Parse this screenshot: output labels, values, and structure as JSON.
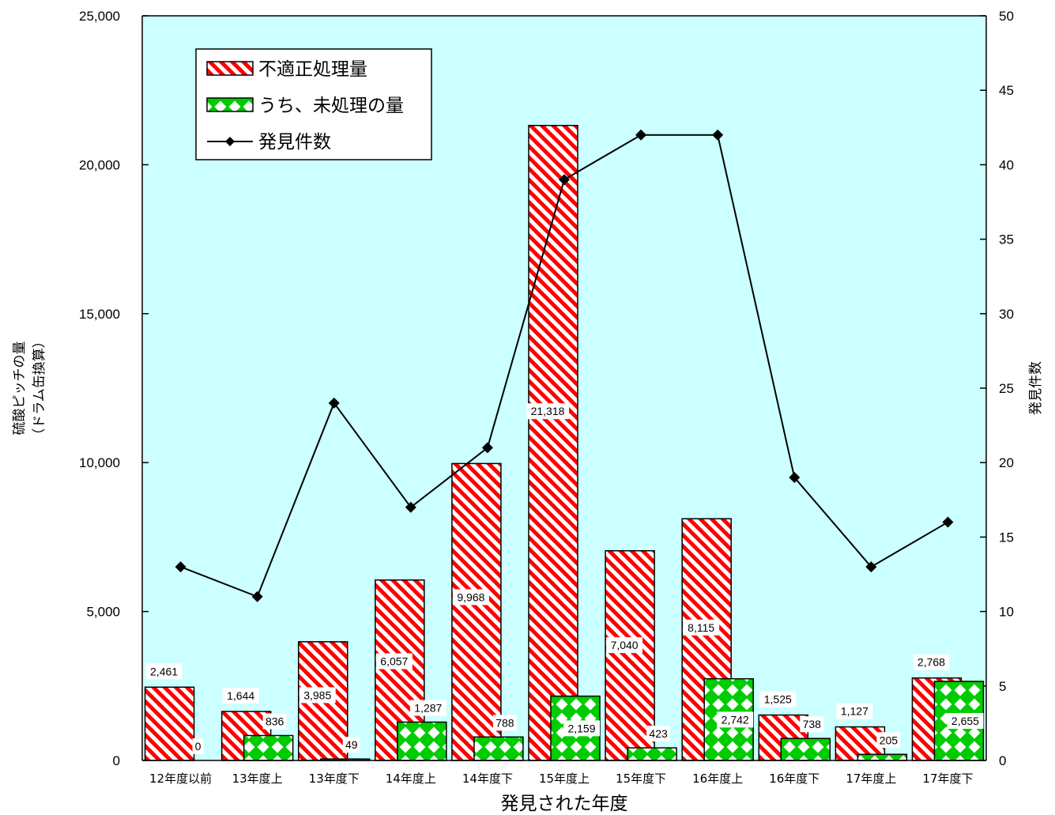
{
  "chart_data": {
    "type": "bar",
    "xlabel": "発見された年度",
    "ylabel": "硫酸ピッチの量",
    "ylabel_sub": "（ドラム缶換算）",
    "y2label": "発見件数",
    "ylim": [
      0,
      25000
    ],
    "y2lim": [
      0,
      50
    ],
    "yticks": [
      "0",
      "5,000",
      "10,000",
      "15,000",
      "20,000",
      "25,000"
    ],
    "y2ticks": [
      "0",
      "5",
      "10",
      "15",
      "20",
      "25",
      "30",
      "35",
      "40",
      "45",
      "50"
    ],
    "grid": false,
    "legend_position": "top-left",
    "background": "#ccffff",
    "categories": [
      "12年度以前",
      "13年度上",
      "13年度下",
      "14年度上",
      "14年度下",
      "15年度上",
      "15年度下",
      "16年度上",
      "16年度下",
      "17年度上",
      "17年度下"
    ],
    "series": [
      {
        "name": "不適正処理量",
        "kind": "bar",
        "axis": "left",
        "pattern": "red-diagonal-stripes",
        "color": "#ff0000",
        "values": [
          2461,
          1644,
          3985,
          6057,
          9968,
          21318,
          7040,
          8115,
          1525,
          1127,
          2768
        ],
        "labels": [
          "2,461",
          "1,644",
          "3,985",
          "6,057",
          "9,968",
          "21,318",
          "7,040",
          "8,115",
          "1,525",
          "1,127",
          "2,768"
        ]
      },
      {
        "name": "うち、未処理の量",
        "kind": "bar",
        "axis": "left",
        "pattern": "green-diamond-checker",
        "color": "#00cc00",
        "values": [
          0,
          836,
          49,
          1287,
          788,
          2159,
          423,
          2742,
          738,
          205,
          2655
        ],
        "labels": [
          "0",
          "836",
          "49",
          "1,287",
          "788",
          "2,159",
          "423",
          "2,742",
          "738",
          "205",
          "2,655"
        ]
      },
      {
        "name": "発見件数",
        "kind": "line",
        "axis": "right",
        "marker": "diamond",
        "color": "#000000",
        "values": [
          13,
          11,
          24,
          17,
          21,
          39,
          42,
          42,
          19,
          13,
          16
        ]
      }
    ]
  }
}
